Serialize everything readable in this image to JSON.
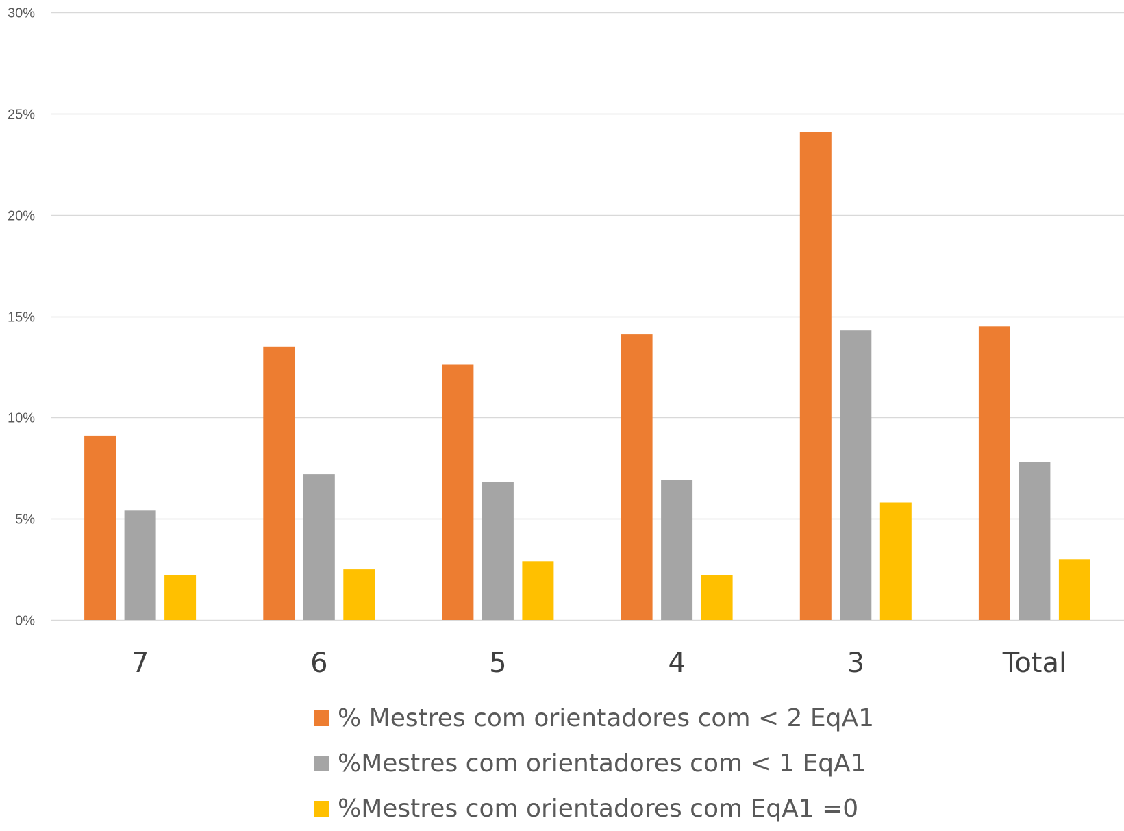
{
  "chart_data": {
    "type": "bar",
    "categories": [
      "7",
      "6",
      "5",
      "4",
      "3",
      "Total"
    ],
    "series": [
      {
        "name": "% Mestres com orientadores com < 2 EqA1",
        "color": "#ED7D31",
        "values": [
          9.1,
          13.5,
          12.6,
          14.1,
          24.1,
          14.5
        ]
      },
      {
        "name": "%Mestres com orientadores com < 1 EqA1",
        "color": "#A5A5A5",
        "values": [
          5.4,
          7.2,
          6.8,
          6.9,
          14.3,
          7.8
        ]
      },
      {
        "name": "%Mestres com orientadores com EqA1 =0",
        "color": "#FFC000",
        "values": [
          2.2,
          2.5,
          2.9,
          2.2,
          5.8,
          3.0
        ]
      }
    ],
    "ylim": [
      0,
      30
    ],
    "yticks": [
      "0%",
      "5%",
      "10%",
      "15%",
      "20%",
      "25%",
      "30%"
    ],
    "ytick_values": [
      0,
      5,
      10,
      15,
      20,
      25,
      30
    ],
    "grid": true,
    "gridline_color": "#D9D9D9",
    "legend_position": "bottom",
    "title": "",
    "xlabel": "",
    "ylabel": ""
  }
}
